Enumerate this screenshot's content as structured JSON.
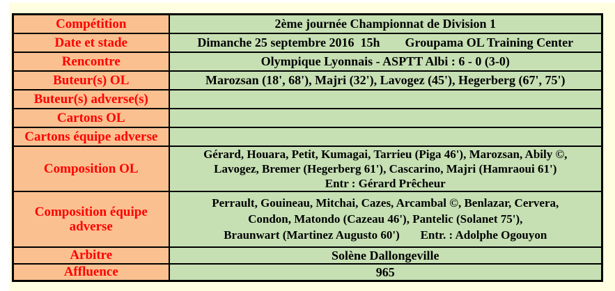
{
  "colors": {
    "page_background": "#fffee0",
    "label_background": "#fac090",
    "value_background": "#c6e0b4",
    "label_text": "#ff0000",
    "value_text": "#000000",
    "border": "#000000"
  },
  "table": {
    "rows": [
      {
        "label": "Compétition",
        "value": "2ème journée Championnat de Division 1"
      },
      {
        "label": "Date et stade",
        "value": "Dimanche 25 septembre 2016  15h        Groupama OL Training Center"
      },
      {
        "label": "Rencontre",
        "value": "Olympique Lyonnais - ASPTT Albi : 6 - 0 (3-0)"
      },
      {
        "label": "Buteur(s) OL",
        "value": "Marozsan (18', 68'), Majri (32'), Lavogez (45'), Hegerberg (67', 75')"
      },
      {
        "label": "Buteur(s) adverse(s)",
        "value": ""
      },
      {
        "label": "Cartons OL",
        "value": ""
      },
      {
        "label": "Cartons équipe adverse",
        "value": ""
      },
      {
        "label": "Composition OL",
        "value": "Gérard, Houara, Petit, Kumagai, Tarrieu (Piga 46'), Marozsan, Abily ©,\nLavogez, Bremer (Hegerberg 61'), Cascarino, Majri (Hamraoui 61')\nEntr : Gérard Prêcheur"
      },
      {
        "label": "Composition équipe adverse",
        "value": "Perrault, Gouineau, Mitchai, Cazes, Arcambal ©, Benlazar, Cervera,\nCondon, Matondo (Cazeau 46'), Pantelic (Solanet 75'),\nBraunwart (Martinez Augusto 60')       Entr. : Adolphe Ogouyon"
      },
      {
        "label": "Arbitre",
        "value": "Solène Dallongeville"
      },
      {
        "label": "Affluence",
        "value": "965"
      }
    ]
  }
}
